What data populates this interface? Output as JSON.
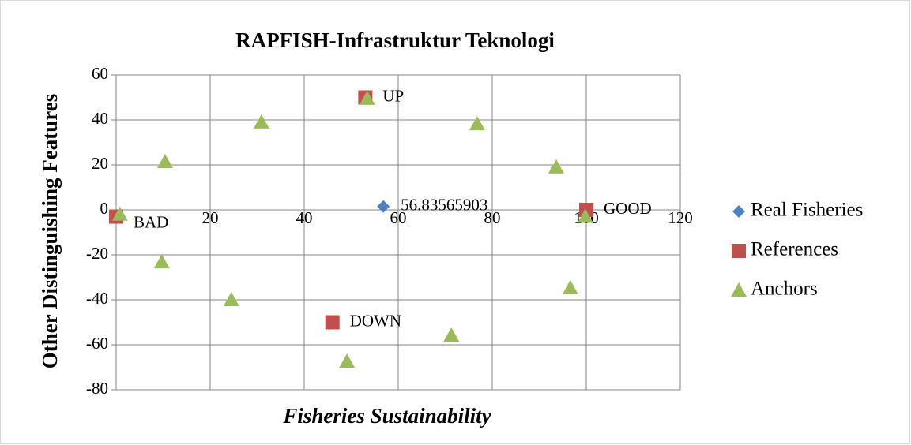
{
  "chart_data": {
    "type": "scatter",
    "title": "RAPFISH-Infrastruktur Teknologi",
    "x_label": "Fisheries Sustainability",
    "y_label": "Other Distinguishing Features",
    "xlim": [
      0,
      120
    ],
    "xticks": [
      0,
      20,
      40,
      60,
      80,
      100,
      120
    ],
    "ylim": [
      -80,
      60
    ],
    "yticks": [
      -80,
      -60,
      -40,
      -20,
      0,
      20,
      40,
      60
    ],
    "grid": true,
    "legend": "right",
    "series": [
      {
        "name": "Real Fisheries",
        "color": "#4f81bd",
        "marker": "diamond",
        "x": [
          56.83565903
        ],
        "values": [
          1.5
        ]
      },
      {
        "name": "References",
        "color": "#c0504d",
        "marker": "square",
        "x": [
          0,
          100,
          53,
          46
        ],
        "values": [
          -3,
          0,
          50,
          -50
        ],
        "labels": [
          "BAD",
          "GOOD",
          "UP",
          "DOWN"
        ]
      },
      {
        "name": "Anchors",
        "color": "#9bbb59",
        "marker": "triangle",
        "x": [
          0.8,
          10.4,
          30.9,
          53.4,
          76.8,
          93.6,
          99.8,
          96.6,
          71.3,
          49.1,
          24.5,
          9.7
        ],
        "values": [
          -2,
          21.4,
          39,
          49.5,
          38.2,
          19,
          -3,
          -34.7,
          -55.8,
          -67.4,
          -40,
          -23.2
        ]
      }
    ]
  }
}
